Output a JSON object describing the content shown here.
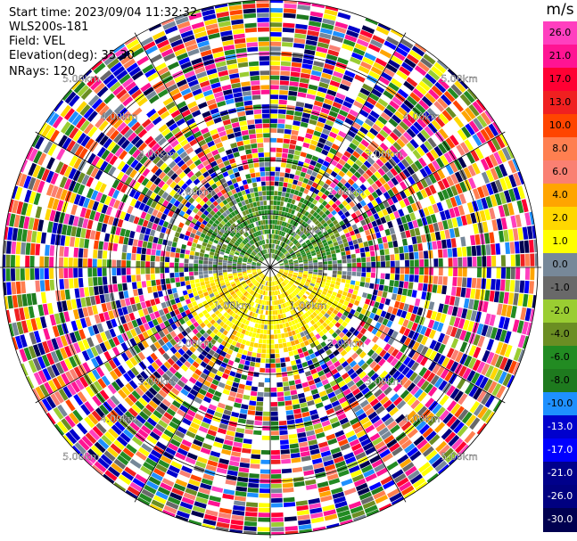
{
  "header": {
    "start_time": "Start time: 2023/09/04 11:32:32",
    "instrument": "WLS200s-181",
    "field": "Field: VEL",
    "elevation": "Elevation(deg): 35.30",
    "nrays": "NRays: 120"
  },
  "colorbar": {
    "unit": "m/s",
    "ticks": [
      "26.0",
      "21.0",
      "17.0",
      "13.0",
      "10.0",
      "8.0",
      "6.0",
      "4.0",
      "2.0",
      "1.0",
      "0.0",
      "-1.0",
      "-2.0",
      "-4.0",
      "-6.0",
      "-8.0",
      "-10.0",
      "-13.0",
      "-17.0",
      "-21.0",
      "-26.0",
      "-30.0"
    ],
    "colors": [
      "#ff3fbf",
      "#ff1493",
      "#ff0033",
      "#f02020",
      "#ff4500",
      "#ff7f50",
      "#fa8072",
      "#ffa500",
      "#ffd700",
      "#ffff00",
      "#778899",
      "#696969",
      "#9acd32",
      "#6b8e23",
      "#228b22",
      "#1e7a1e",
      "#1e90ff",
      "#0000cd",
      "#0000ff",
      "#00008b",
      "#000080",
      "#000050"
    ]
  },
  "chart_data": {
    "type": "ppi",
    "field": "VEL",
    "units": "m/s",
    "nrays": 120,
    "elevation_deg": 35.3,
    "max_range_km": 5.0,
    "range_ring_labels": [
      "1.00km",
      "2.00km",
      "3.00km",
      "4.00km",
      "5.00km"
    ],
    "range_rings_km": [
      1,
      2,
      3,
      4,
      5
    ],
    "spokes": 12,
    "near_field": {
      "north_half_color_range": [
        "#228b22",
        "#9acd32"
      ],
      "south_half_color_range": [
        "#ffd700",
        "#ffa500"
      ],
      "gray_band_near_horizontal": true,
      "valid_range_km": 1.6
    },
    "far_field": "noise"
  }
}
